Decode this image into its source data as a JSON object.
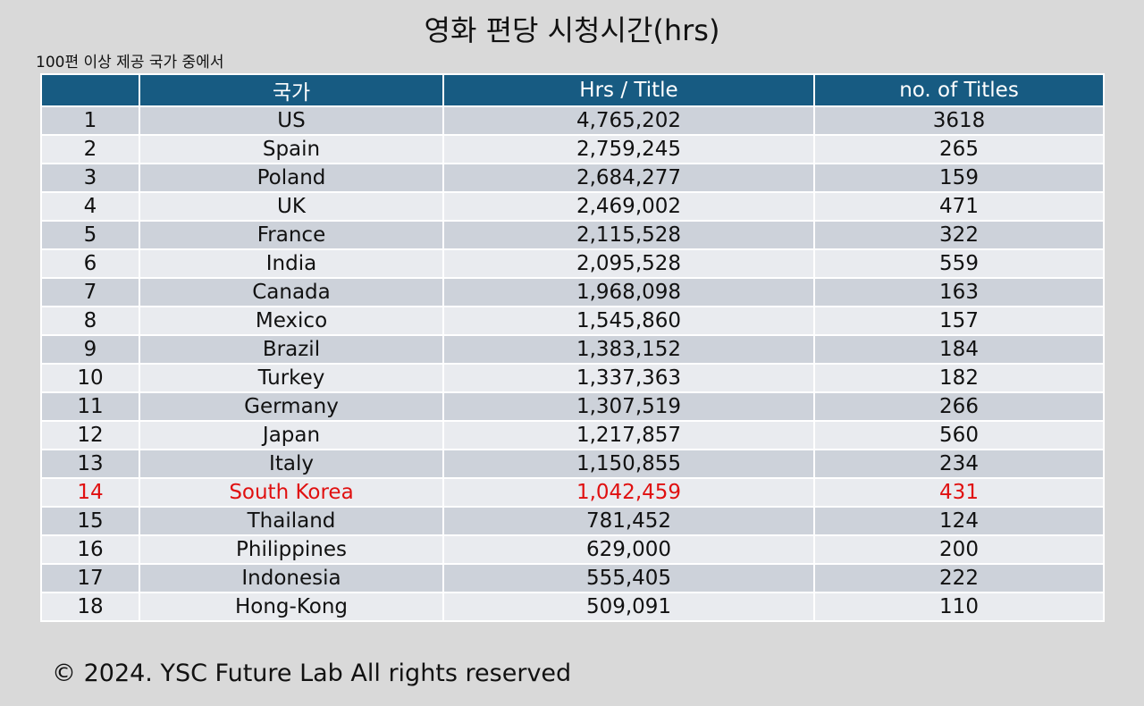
{
  "chart_data": {
    "type": "table",
    "title": "영화 편당 시청시간(hrs)",
    "subtitle": "100편 이상 제공 국가 중에서",
    "columns": [
      "",
      "국가",
      "Hrs / Title",
      "no. of Titles"
    ],
    "rows": [
      [
        "1",
        "US",
        "4,765,202",
        "3618"
      ],
      [
        "2",
        "Spain",
        "2,759,245",
        "265"
      ],
      [
        "3",
        "Poland",
        "2,684,277",
        "159"
      ],
      [
        "4",
        "UK",
        "2,469,002",
        "471"
      ],
      [
        "5",
        "France",
        "2,115,528",
        "322"
      ],
      [
        "6",
        "India",
        "2,095,528",
        "559"
      ],
      [
        "7",
        "Canada",
        "1,968,098",
        "163"
      ],
      [
        "8",
        "Mexico",
        "1,545,860",
        "157"
      ],
      [
        "9",
        "Brazil",
        "1,383,152",
        "184"
      ],
      [
        "10",
        "Turkey",
        "1,337,363",
        "182"
      ],
      [
        "11",
        "Germany",
        "1,307,519",
        "266"
      ],
      [
        "12",
        "Japan",
        "1,217,857",
        "560"
      ],
      [
        "13",
        "Italy",
        "1,150,855",
        "234"
      ],
      [
        "14",
        "South Korea",
        "1,042,459",
        "431"
      ],
      [
        "15",
        "Thailand",
        "781,452",
        "124"
      ],
      [
        "16",
        "Philippines",
        "629,000",
        "200"
      ],
      [
        "17",
        "Indonesia",
        "555,405",
        "222"
      ],
      [
        "18",
        "Hong-Kong",
        "509,091",
        "110"
      ]
    ],
    "highlight_row": 14,
    "colors": {
      "header_bg": "#175b82",
      "row_dark": "#cdd2da",
      "row_light": "#e9ebef",
      "highlight_text": "#e01010"
    }
  },
  "footer": "© 2024. YSC Future Lab All rights reserved"
}
